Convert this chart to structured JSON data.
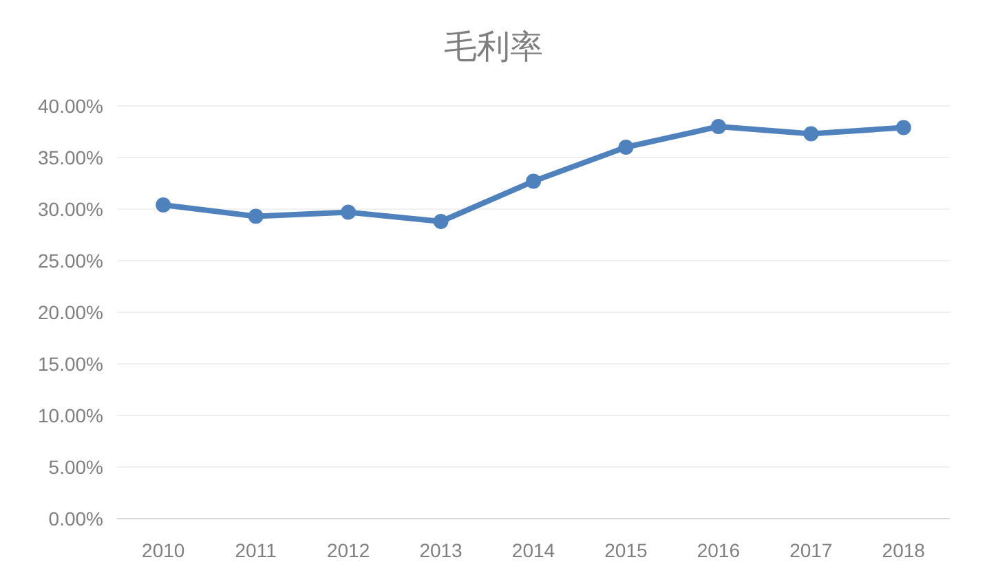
{
  "chart_data": {
    "type": "line",
    "title": "毛利率",
    "categories": [
      "2010",
      "2011",
      "2012",
      "2013",
      "2014",
      "2015",
      "2016",
      "2017",
      "2018"
    ],
    "series": [
      {
        "color": "#4f81bd",
        "values": [
          30.4,
          29.3,
          29.7,
          28.8,
          32.7,
          36.0,
          38.0,
          37.3,
          37.9
        ]
      }
    ],
    "ylim": [
      0,
      40
    ],
    "yticks": [
      {
        "value": 0,
        "label": "0.00%"
      },
      {
        "value": 5,
        "label": "5.00%"
      },
      {
        "value": 10,
        "label": "10.00%"
      },
      {
        "value": 15,
        "label": "15.00%"
      },
      {
        "value": 20,
        "label": "20.00%"
      },
      {
        "value": 25,
        "label": "25.00%"
      },
      {
        "value": 30,
        "label": "30.00%"
      },
      {
        "value": 35,
        "label": "35.00%"
      },
      {
        "value": 40,
        "label": "40.00%"
      }
    ],
    "grid": "y",
    "marker": "circle",
    "line_style": "solid"
  }
}
